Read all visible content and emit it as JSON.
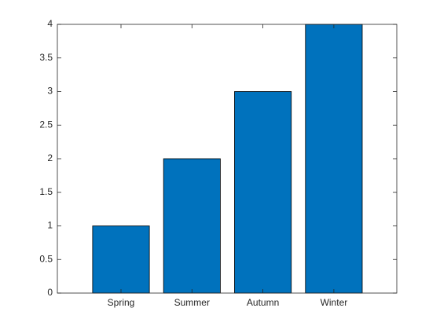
{
  "chart_data": {
    "type": "bar",
    "categories": [
      "Spring",
      "Summer",
      "Autumn",
      "Winter"
    ],
    "values": [
      1,
      2,
      3,
      4
    ],
    "color": "#0072bd",
    "ylim": [
      0,
      4
    ],
    "yticks": [
      0,
      0.5,
      1,
      1.5,
      2,
      2.5,
      3,
      3.5,
      4
    ],
    "grid": false
  }
}
